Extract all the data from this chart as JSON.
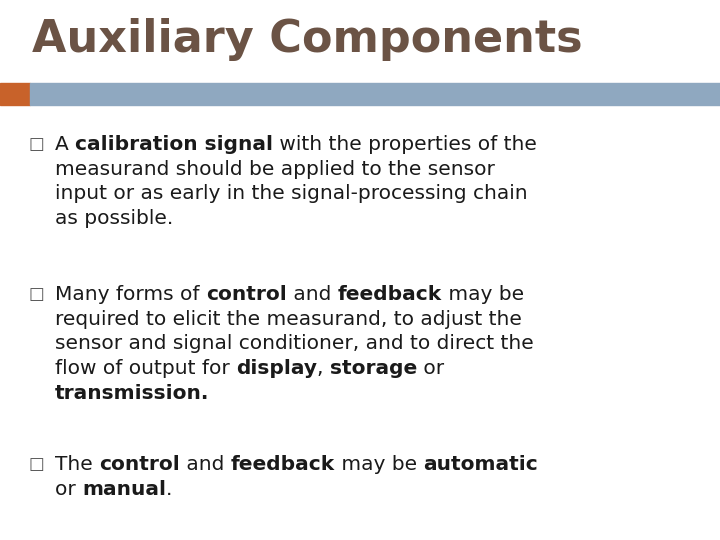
{
  "title": "Auxiliary Components",
  "title_color": "#6B5345",
  "title_fontsize": 32,
  "background_color": "#FFFFFF",
  "bar_left_color": "#C8622A",
  "bar_right_color": "#8FA8C0",
  "bullet_color": "#555555",
  "text_color": "#1A1A1A",
  "text_fontsize": 14.5,
  "bullet_fontsize": 12,
  "bullets": [
    {
      "segments": [
        {
          "text": "A ",
          "bold": false
        },
        {
          "text": "calibration signal",
          "bold": true
        },
        {
          "text": " with the properties of the\nmeasurand should be applied to the sensor\ninput or as early in the signal-processing chain\nas possible.",
          "bold": false
        }
      ]
    },
    {
      "segments": [
        {
          "text": "Many forms of ",
          "bold": false
        },
        {
          "text": "control",
          "bold": true
        },
        {
          "text": " and ",
          "bold": false
        },
        {
          "text": "feedback",
          "bold": true
        },
        {
          "text": " may be\nrequired to elicit the measurand, to adjust the\nsensor and signal conditioner, and to direct the\nflow of output for ",
          "bold": false
        },
        {
          "text": "display",
          "bold": true
        },
        {
          "text": ", ",
          "bold": false
        },
        {
          "text": "storage",
          "bold": true
        },
        {
          "text": " or\n",
          "bold": false
        },
        {
          "text": "transmission.",
          "bold": true
        }
      ]
    },
    {
      "segments": [
        {
          "text": "The ",
          "bold": false
        },
        {
          "text": "control",
          "bold": true
        },
        {
          "text": " and ",
          "bold": false
        },
        {
          "text": "feedback",
          "bold": true
        },
        {
          "text": " may be ",
          "bold": false
        },
        {
          "text": "automatic",
          "bold": true
        },
        {
          "text": "\nor ",
          "bold": false
        },
        {
          "text": "manual",
          "bold": true
        },
        {
          "text": ".",
          "bold": false
        }
      ]
    }
  ]
}
